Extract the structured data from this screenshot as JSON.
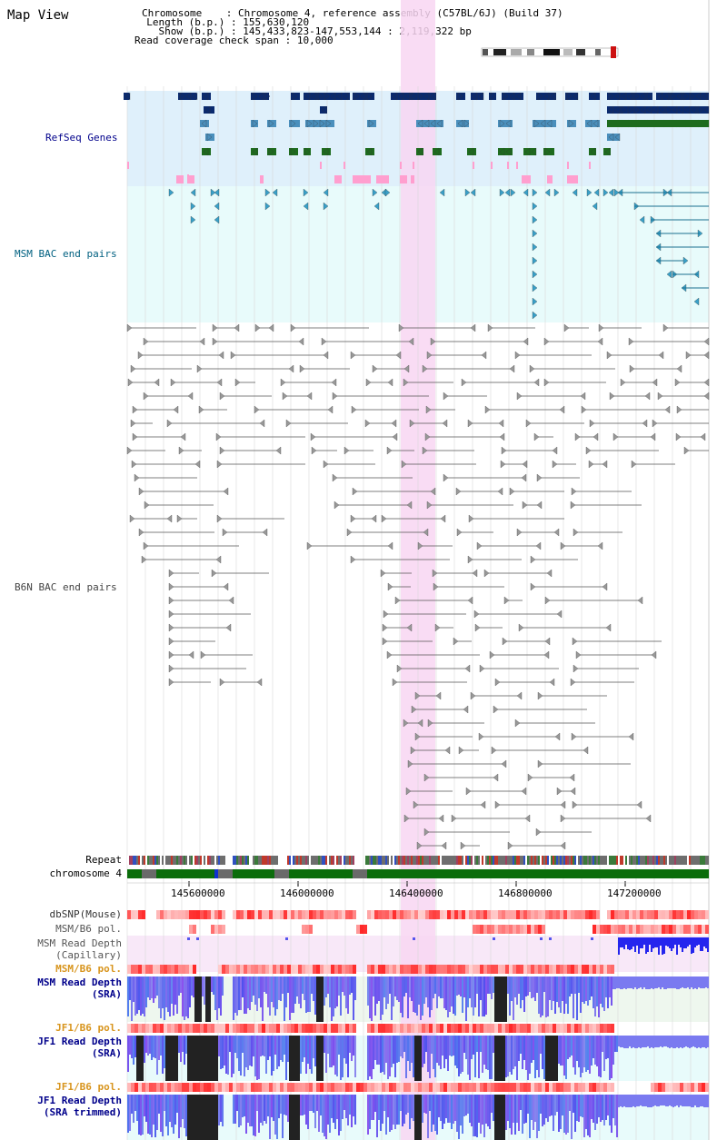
{
  "view": {
    "title": "Map View"
  },
  "chromosome_info": {
    "chromosome_key": "Chromosome",
    "chromosome_value": "Chromosome 4, reference assembly (C57BL/6J) (Build 37)",
    "length_key": "Length (b.p.)",
    "length_value": "155,630,120",
    "show_key": "Show (b.p.)",
    "show_value": "145,433,823-147,553,144 : 2,119,322 bp",
    "coverage_key": "Read coverage check span",
    "coverage_value": "10,000"
  },
  "tracks": {
    "refseq_label": "RefSeq Genes",
    "msm_bac_label": "MSM BAC end pairs",
    "b6n_bac_label": "B6N BAC end pairs",
    "repeat_label": "Repeat",
    "chromosome_label": "chromosome 4",
    "dbsnp_label": "dbSNP(Mouse)",
    "msm_b6_pol_cap_label": "MSM/B6 pol.",
    "msm_depth_cap_label": "MSM Read Depth",
    "msm_depth_cap_sub": "(Capillary)",
    "msm_b6_pol_label": "MSM/B6 pol.",
    "msm_depth_sra_label": "MSM Read Depth",
    "msm_depth_sra_sub": "(SRA)",
    "jf1_b6_pol_label": "JF1/B6 pol.",
    "jf1_depth_label": "JF1 Read Depth",
    "jf1_depth_sub": "(SRA)",
    "jf1_b6_pol2_label": "JF1/B6 pol.",
    "jf1_depth_trim_label": "JF1 Read Depth",
    "jf1_depth_trim_sub": "(SRA trimmed)"
  },
  "axis": {
    "ticks": [
      "145600000",
      "146000000",
      "146400000",
      "146800000",
      "147200000"
    ]
  },
  "colors": {
    "refseq_bg": "#dff0fb",
    "msm_bac_bg": "#e8fbfb",
    "highlight": "#f8d6f2",
    "dark_gene": "#0a2a6e",
    "mid_gene": "#4a8fbc",
    "green_gene": "#1e6b1e",
    "pink_gene": "#ff9fcf",
    "bac_msm": "#1a6f8f",
    "bac_b6n": "#707070",
    "chromosome_band": "#0b6d0b",
    "label_blue": "#00008b",
    "label_teal": "#006080",
    "label_orange": "#d8951e",
    "depth_blue": "#2525ee"
  }
}
